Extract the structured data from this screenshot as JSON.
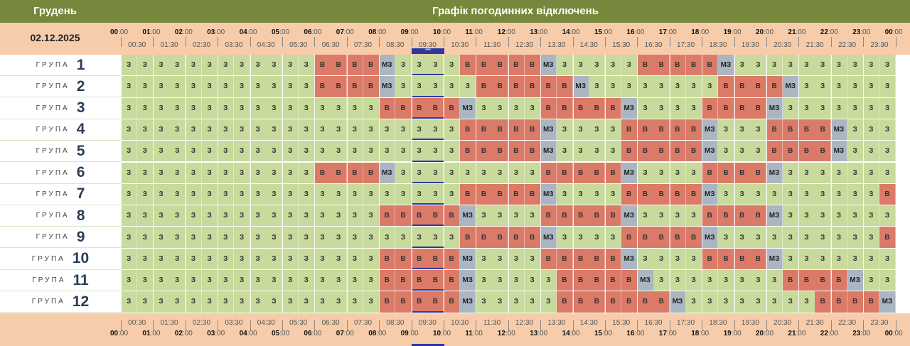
{
  "header": {
    "month": "Грудень",
    "title": "Графік погодинних відключень",
    "date": "02.12.2025"
  },
  "hours": [
    "00",
    "01",
    "02",
    "03",
    "04",
    "05",
    "06",
    "07",
    "08",
    "09",
    "10",
    "11",
    "12",
    "13",
    "14",
    "15",
    "16",
    "17",
    "18",
    "19",
    "20",
    "21",
    "22",
    "23",
    "00"
  ],
  "half_hours": [
    "00:30",
    "01:30",
    "02:30",
    "03:30",
    "04:30",
    "05:30",
    "06:30",
    "07:30",
    "08:30",
    "09:30",
    "10:30",
    "11:30",
    "12:30",
    "13:30",
    "14:30",
    "15:30",
    "16:30",
    "17:30",
    "18:30",
    "19:30",
    "20:30",
    "21:30",
    "22:30",
    "23:30"
  ],
  "minute_suffix": ":00",
  "current_marker": "***",
  "group_word": "ГРУПА",
  "state_labels": {
    "z": "З",
    "v": "В",
    "m": "МЗ"
  },
  "colors": {
    "on": "#c8da9c",
    "off": "#dc7a68",
    "maybe": "#aab6c2",
    "band": "#f6ccaa",
    "header": "#77873b",
    "current": "#2c3aa0"
  },
  "groups": [
    {
      "number": "1",
      "slots": "zzzzzzzzzzzzvvvvmzzzzvvvvvmzzzzzvvvvvmzzzzzzzzzzzz"
    },
    {
      "number": "2",
      "slots": "zzzzzzzzzzzzvvvvmzzzzzvvvvvvmzzzzzzzzvvvvmzzzzzzzzz"
    },
    {
      "number": "3",
      "slots": "zzzzzzzzzzzzzzzzvvvvvmzzzzvvvvvmzzzzvvvvmzzzzzzzzz"
    },
    {
      "number": "4",
      "slots": "zzzzzzzzzzzzzzzzzzzzzvvvvvmzzzzvvvvvmzzzvvvvmzzzzz"
    },
    {
      "number": "5",
      "slots": "zzzzzzzzzzzzzzzzzzzzzvvvvvmzzzzvvvvvmzzzvvvvmzzzzz"
    },
    {
      "number": "6",
      "slots": "zzzzzzzzzzzzvvvvmzzzzzzzzzvvvvvmzzzzvvvvmzzzzzzzzzz"
    },
    {
      "number": "7",
      "slots": "zzzzzzzzzzzzzzzzzzzzzvvvvvmzzzzvvvvvmzzzzzzzzzzvvvv"
    },
    {
      "number": "8",
      "slots": "zzzzzzzzzzzzzzzzvvvvvmzzzzvvvvvmzzzzvvvvmzzzzzzzzzz"
    },
    {
      "number": "9",
      "slots": "zzzzzzzzzzzzzzzzzzzzzvvvvvmzzzzvvvvvmzzzzzzzzzzvvvv"
    },
    {
      "number": "10",
      "slots": "zzzzzzzzzzzzzzzzvvvvvmzzzzvvvvvmzzzzvvvvmzzzzzzzzzz"
    },
    {
      "number": "11",
      "slots": "zzzzzzzzzzzzzzzzvvvvvmzzzzzvvvvvmzzzzzzzzvvvvmzzzz"
    },
    {
      "number": "12",
      "slots": "zzzzzzzzzzzzzzzzvvvvvmzzzzzvvvvvvvmzzzzzzzzvvvvmzzzz"
    }
  ]
}
